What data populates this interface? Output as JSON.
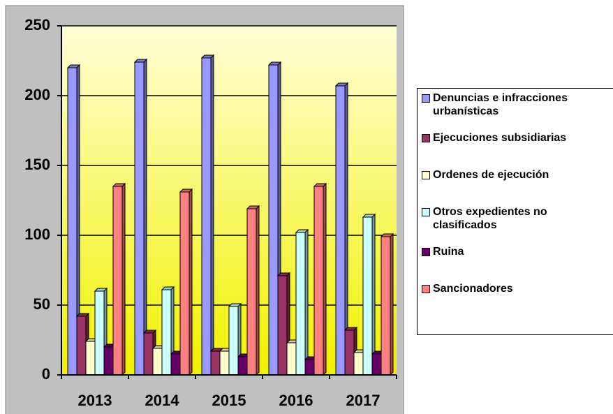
{
  "chart_data": {
    "type": "bar3d",
    "categories": [
      "2013",
      "2014",
      "2015",
      "2016",
      "2017"
    ],
    "series": [
      {
        "name": "Denuncias e infracciones urbanísticas",
        "color": "#9999ff",
        "values": [
          220,
          224,
          227,
          222,
          207
        ]
      },
      {
        "name": "Ejecuciones subsidiarias",
        "color": "#993366",
        "values": [
          42,
          30,
          17,
          71,
          32
        ]
      },
      {
        "name": "Ordenes de ejecución",
        "color": "#ffffcc",
        "values": [
          24,
          19,
          17,
          23,
          16
        ]
      },
      {
        "name": "Otros expedientes no clasificados",
        "color": "#ccffff",
        "values": [
          60,
          61,
          49,
          102,
          113
        ]
      },
      {
        "name": "Ruina",
        "color": "#660066",
        "values": [
          20,
          15,
          13,
          11,
          15
        ]
      },
      {
        "name": "Sancionadores",
        "color": "#ff8080",
        "values": [
          135,
          131,
          119,
          135,
          99
        ]
      }
    ],
    "ylim": [
      0,
      250
    ],
    "yticks": [
      0,
      50,
      100,
      150,
      200,
      250
    ],
    "grid": true,
    "legend": "right"
  }
}
